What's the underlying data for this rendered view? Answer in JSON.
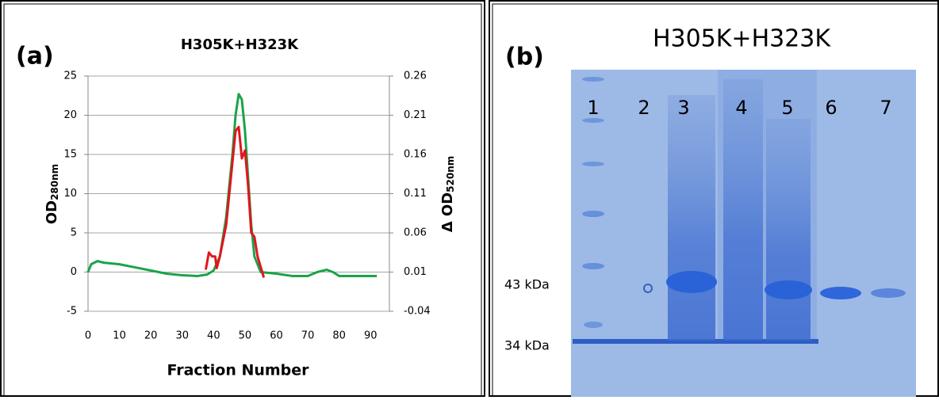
{
  "chart_data": {
    "type": "line",
    "panel_label": "(a)",
    "title": "H305K+H323K",
    "xlabel": "Fraction Number",
    "ylabel": "OD",
    "ylabel_sub": "280nm",
    "y2label": "Δ OD",
    "y2label_sub": "520nm",
    "xlim": [
      0,
      96
    ],
    "xticks": [
      0,
      10,
      20,
      30,
      40,
      50,
      60,
      70,
      80,
      90
    ],
    "ylim": [
      -5,
      25
    ],
    "yticks": [
      -5,
      0,
      5,
      10,
      15,
      20,
      25
    ],
    "y2lim": [
      -0.04,
      0.26
    ],
    "y2ticks": [
      -0.04,
      0.01,
      0.06,
      0.11,
      0.16,
      0.21,
      0.26
    ],
    "grid": true,
    "series": [
      {
        "color": "#1aa44a",
        "x": [
          0,
          1,
          3,
          5,
          10,
          15,
          20,
          25,
          30,
          35,
          38,
          40,
          42,
          44,
          46,
          47,
          48,
          49,
          50,
          51,
          52,
          53,
          55,
          60,
          65,
          70,
          73,
          76,
          78,
          80,
          85,
          92
        ],
        "values": [
          0,
          1,
          1.4,
          1.2,
          1,
          0.6,
          0.2,
          -0.2,
          -0.4,
          -0.5,
          -0.3,
          0.2,
          2,
          7,
          15,
          20,
          22.7,
          22,
          18,
          12,
          6,
          2,
          0,
          -0.2,
          -0.5,
          -0.5,
          0,
          0.3,
          0,
          -0.5,
          -0.5,
          -0.5
        ]
      },
      {
        "color": "#e0161c",
        "axis": "y2",
        "x": [
          37.5,
          38.5,
          39.5,
          40.5,
          41,
          42,
          44,
          46,
          47,
          48,
          49,
          50,
          51,
          52,
          53,
          54,
          56
        ],
        "values": [
          0.013,
          0.035,
          0.03,
          0.03,
          0.015,
          0.03,
          0.07,
          0.15,
          0.19,
          0.195,
          0.155,
          0.165,
          0.12,
          0.06,
          0.055,
          0.03,
          0.003
        ]
      }
    ]
  },
  "gel": {
    "panel_label": "(b)",
    "title": "H305K+H323K",
    "lanes": [
      "1",
      "2",
      "3",
      "4",
      "5",
      "6",
      "7"
    ],
    "markers": [
      "43 kDa",
      "34 kDa"
    ]
  }
}
